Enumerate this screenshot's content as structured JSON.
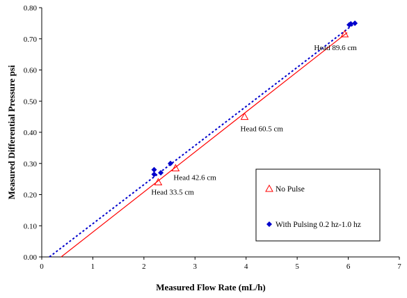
{
  "chart_data": {
    "type": "scatter",
    "xlabel": "Measured Flow Rate (mL/h)",
    "ylabel": "Measured Differential Pressure psi",
    "xlim": [
      0,
      7
    ],
    "ylim": [
      0,
      0.8
    ],
    "x_ticks": [
      "0",
      "1",
      "2",
      "3",
      "4",
      "5",
      "6",
      "7"
    ],
    "y_ticks": [
      "0.00",
      "0.10",
      "0.20",
      "0.30",
      "0.40",
      "0.50",
      "0.60",
      "0.70",
      "0.80"
    ],
    "grid": false,
    "legend_position": "lower-right",
    "series": [
      {
        "name": "No Pulse",
        "marker": "open-triangle",
        "color": "#ff0000",
        "points": [
          [
            2.28,
            0.24
          ],
          [
            2.62,
            0.285
          ],
          [
            3.97,
            0.45
          ],
          [
            5.93,
            0.715
          ]
        ]
      },
      {
        "name": "With Pulsing 0.2 hz-1.0 hz",
        "marker": "filled-diamond",
        "color": "#0000cc",
        "points": [
          [
            2.2,
            0.265
          ],
          [
            2.2,
            0.28
          ],
          [
            2.33,
            0.27
          ],
          [
            2.52,
            0.3
          ],
          [
            6.02,
            0.745
          ],
          [
            6.05,
            0.748
          ],
          [
            6.13,
            0.75
          ]
        ]
      }
    ],
    "trendlines": [
      {
        "series": "No Pulse",
        "style": "solid",
        "color": "#ff0000",
        "from": [
          0.38,
          0.0
        ],
        "to": [
          5.98,
          0.72
        ]
      },
      {
        "series": "With Pulsing 0.2 hz-1.0 hz",
        "style": "dotted",
        "color": "#0000cc",
        "from": [
          0.15,
          0.0
        ],
        "to": [
          6.13,
          0.75
        ]
      }
    ],
    "annotations": [
      {
        "text": "Head 33.5 cm",
        "x": 2.28,
        "y": 0.24
      },
      {
        "text": "Head 42.6 cm",
        "x": 2.62,
        "y": 0.285
      },
      {
        "text": "Head 60.5 cm",
        "x": 3.97,
        "y": 0.45
      },
      {
        "text": "Head 89.6 cm",
        "x": 5.93,
        "y": 0.715
      }
    ]
  }
}
